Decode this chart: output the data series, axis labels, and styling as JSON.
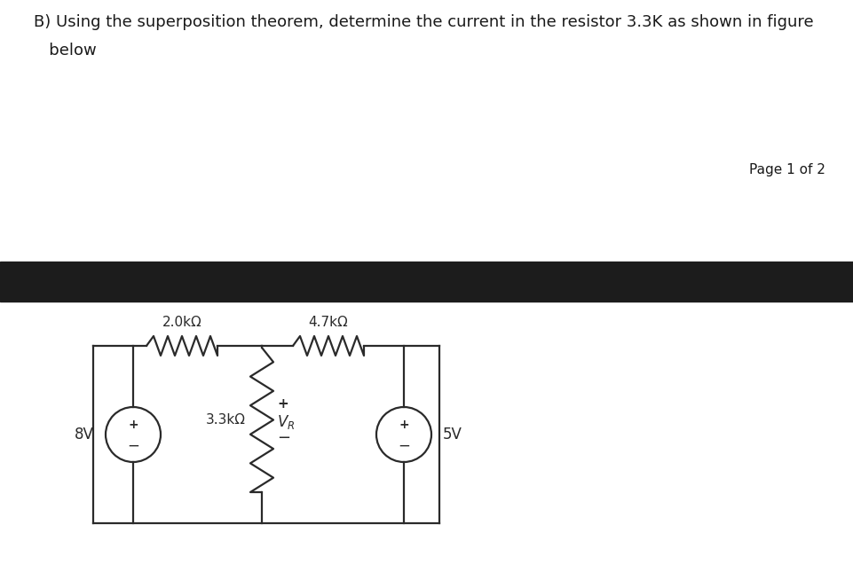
{
  "title_line1": "B) Using the superposition theorem, determine the current in the resistor 3.3K as shown in figure",
  "title_line2": "   below",
  "page_text": "Page 1 of 2",
  "background_color": "#ffffff",
  "black_bar_color": "#1c1c1c",
  "circuit_color": "#2a2a2a",
  "text_color": "#1a1a1a",
  "label_8V": "8V",
  "label_5V": "5V",
  "label_2k": "2.0kΩ",
  "label_4k7": "4.7kΩ",
  "label_3k3": "3.3kΩ",
  "plus_sign": "+",
  "minus_sign": "−",
  "figsize": [
    9.62,
    6.36
  ],
  "dpi": 100,
  "title_fontsize": 13,
  "page_fontsize": 11,
  "circuit_fontsize": 11,
  "lw": 1.6
}
